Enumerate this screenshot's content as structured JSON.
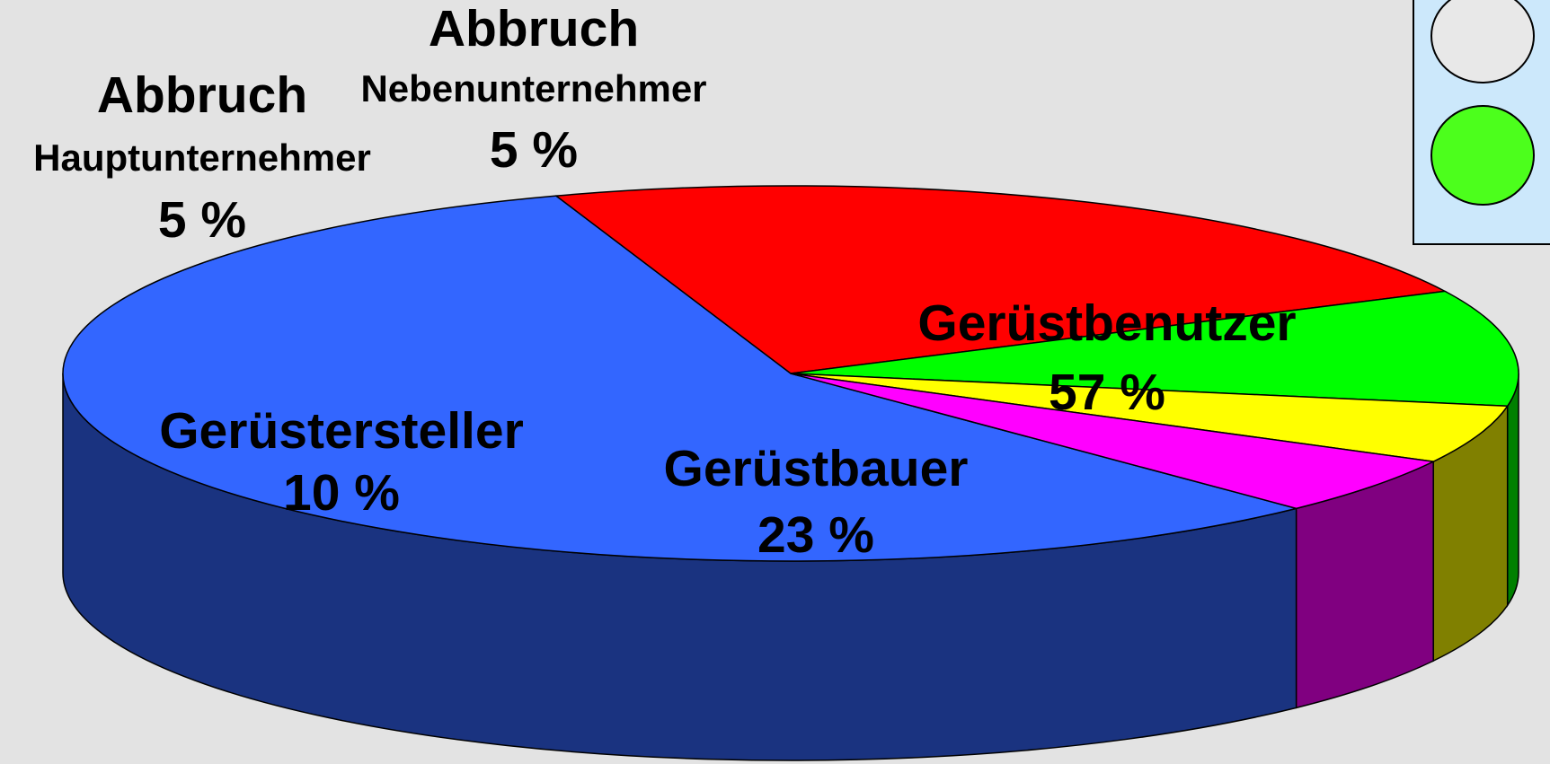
{
  "chart_data": {
    "type": "pie",
    "categories": [
      [
        "Gerüstbenutzer"
      ],
      [
        "Gerüstbauer"
      ],
      [
        "Gerüstersteller"
      ],
      [
        "Abbruch",
        "Nebenunternehmer"
      ],
      [
        "Abbruch",
        "Hauptunternehmer"
      ]
    ],
    "values": [
      57,
      23,
      10,
      5,
      5
    ],
    "value_labels": [
      "57 %",
      "23 %",
      "10 %",
      "5 %",
      "5 %"
    ],
    "colors": [
      "#3366ff",
      "#ff0000",
      "#00ff00",
      "#ffff00",
      "#ff00ff"
    ],
    "side_colors": [
      "#1a3380",
      "#800000",
      "#008000",
      "#808000",
      "#800080"
    ]
  }
}
